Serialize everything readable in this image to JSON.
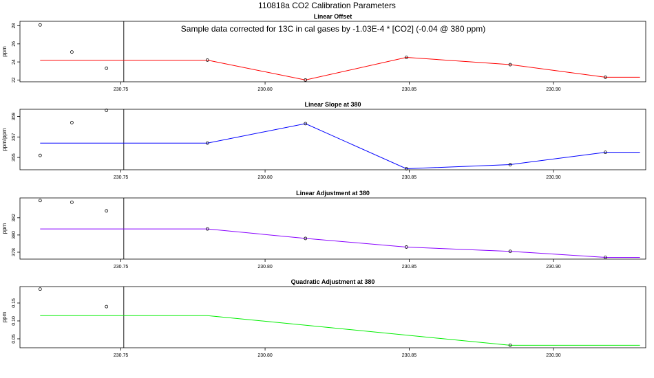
{
  "title": "110818a   CO2 Calibration Parameters",
  "chart_data": [
    {
      "type": "line",
      "title": "Linear Offset",
      "ylabel": "ppm",
      "annotation": "Sample data corrected for 13C in cal gases by -1.03E-4 * [CO2] (-0.04 @ 380 ppm)",
      "line_color": "#ff0000",
      "xlim": [
        230.715,
        230.932
      ],
      "ylim": [
        21.8,
        28.5
      ],
      "x_ticks": [
        "230.75",
        "230.80",
        "230.85",
        "230.90"
      ],
      "y_ticks": [
        "22",
        "24",
        "26",
        "28"
      ],
      "vline_x": 230.751,
      "line": {
        "x": [
          230.722,
          230.78,
          230.814,
          230.849,
          230.885,
          230.918,
          230.93
        ],
        "y": [
          24.2,
          24.2,
          22.0,
          24.5,
          23.7,
          22.3,
          22.3
        ]
      },
      "points": {
        "x": [
          230.722,
          230.733,
          230.745,
          230.78,
          230.814,
          230.849,
          230.885,
          230.918
        ],
        "y": [
          28.1,
          25.1,
          23.3,
          24.2,
          22.0,
          24.5,
          23.7,
          22.3
        ]
      }
    },
    {
      "type": "line",
      "title": "Linear Slope at 380",
      "ylabel": "ppm/ppm",
      "line_color": "#0000ff",
      "xlim": [
        230.715,
        230.932
      ],
      "ylim": [
        353.8,
        359.7
      ],
      "x_ticks": [
        "230.75",
        "230.80",
        "230.85",
        "230.90"
      ],
      "y_ticks": [
        "355",
        "357",
        "359"
      ],
      "vline_x": 230.751,
      "line": {
        "x": [
          230.722,
          230.78,
          230.814,
          230.849,
          230.885,
          230.918,
          230.93
        ],
        "y": [
          356.4,
          356.4,
          358.3,
          353.9,
          354.3,
          355.5,
          355.5
        ]
      },
      "points": {
        "x": [
          230.722,
          230.733,
          230.745,
          230.78,
          230.814,
          230.849,
          230.885,
          230.918
        ],
        "y": [
          355.2,
          358.4,
          359.6,
          356.4,
          358.3,
          353.9,
          354.3,
          355.5
        ]
      }
    },
    {
      "type": "line",
      "title": "Linear Adjustment at 380",
      "ylabel": "ppm",
      "line_color": "#8800ff",
      "xlim": [
        230.715,
        230.932
      ],
      "ylim": [
        377.2,
        384.3
      ],
      "x_ticks": [
        "230.75",
        "230.80",
        "230.85",
        "230.90"
      ],
      "y_ticks": [
        "378",
        "380",
        "382"
      ],
      "vline_x": 230.751,
      "line": {
        "x": [
          230.722,
          230.78,
          230.814,
          230.849,
          230.885,
          230.918,
          230.93
        ],
        "y": [
          380.7,
          380.7,
          379.6,
          378.6,
          378.1,
          377.4,
          377.4
        ]
      },
      "points": {
        "x": [
          230.722,
          230.733,
          230.745,
          230.78,
          230.814,
          230.849,
          230.885,
          230.918
        ],
        "y": [
          384.0,
          383.8,
          382.8,
          380.7,
          379.6,
          378.6,
          378.1,
          377.4
        ]
      }
    },
    {
      "type": "line",
      "title": "Quadratic Adjustment at 380",
      "ylabel": "ppm",
      "line_color": "#00ee00",
      "xlim": [
        230.715,
        230.932
      ],
      "ylim": [
        0.025,
        0.196
      ],
      "x_ticks": [
        "230.75",
        "230.80",
        "230.85",
        "230.90"
      ],
      "y_ticks": [
        "0.05",
        "0.10",
        "0.15"
      ],
      "vline_x": 230.751,
      "line": {
        "x": [
          230.722,
          230.78,
          230.885,
          230.93
        ],
        "y": [
          0.115,
          0.115,
          0.032,
          0.032
        ]
      },
      "points": {
        "x": [
          230.722,
          230.745,
          230.885
        ],
        "y": [
          0.189,
          0.14,
          0.032
        ]
      }
    }
  ]
}
